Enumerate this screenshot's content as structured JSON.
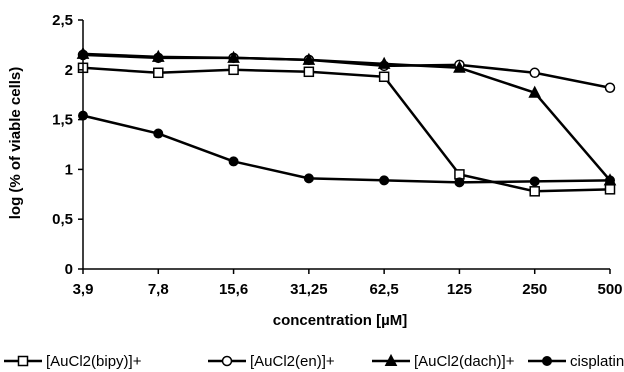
{
  "chart_data": {
    "type": "line",
    "categories": [
      "3,9",
      "7,8",
      "15,6",
      "31,25",
      "62,5",
      "125",
      "250",
      "500"
    ],
    "xlabel": "concentration [µM]",
    "ylabel": "log (% of viable cells)",
    "ylim": [
      0,
      2.5
    ],
    "yticks": [
      0,
      0.5,
      1,
      1.5,
      2,
      2.5
    ],
    "ytick_labels": [
      "0",
      "0,5",
      "1",
      "1,5",
      "2",
      "2,5"
    ],
    "grid": false,
    "legend_position": "bottom",
    "series": [
      {
        "name": "[AuCl2(bipy)]+",
        "marker": "square-open",
        "color": "#000000",
        "values": [
          2.02,
          1.97,
          2.0,
          1.98,
          1.93,
          0.95,
          0.78,
          0.8
        ]
      },
      {
        "name": "[AuCl2(en)]+",
        "marker": "circle-open",
        "color": "#000000",
        "values": [
          2.15,
          2.12,
          2.12,
          2.1,
          2.04,
          2.05,
          1.97,
          1.82
        ]
      },
      {
        "name": "[AuCl2(dach)]+",
        "marker": "triangle-filled",
        "color": "#000000",
        "values": [
          2.16,
          2.13,
          2.12,
          2.1,
          2.06,
          2.02,
          1.77,
          0.89
        ]
      },
      {
        "name": "cisplatin",
        "marker": "circle-filled",
        "color": "#000000",
        "values": [
          1.54,
          1.36,
          1.08,
          0.91,
          0.89,
          0.87,
          0.88,
          0.89
        ]
      }
    ]
  }
}
